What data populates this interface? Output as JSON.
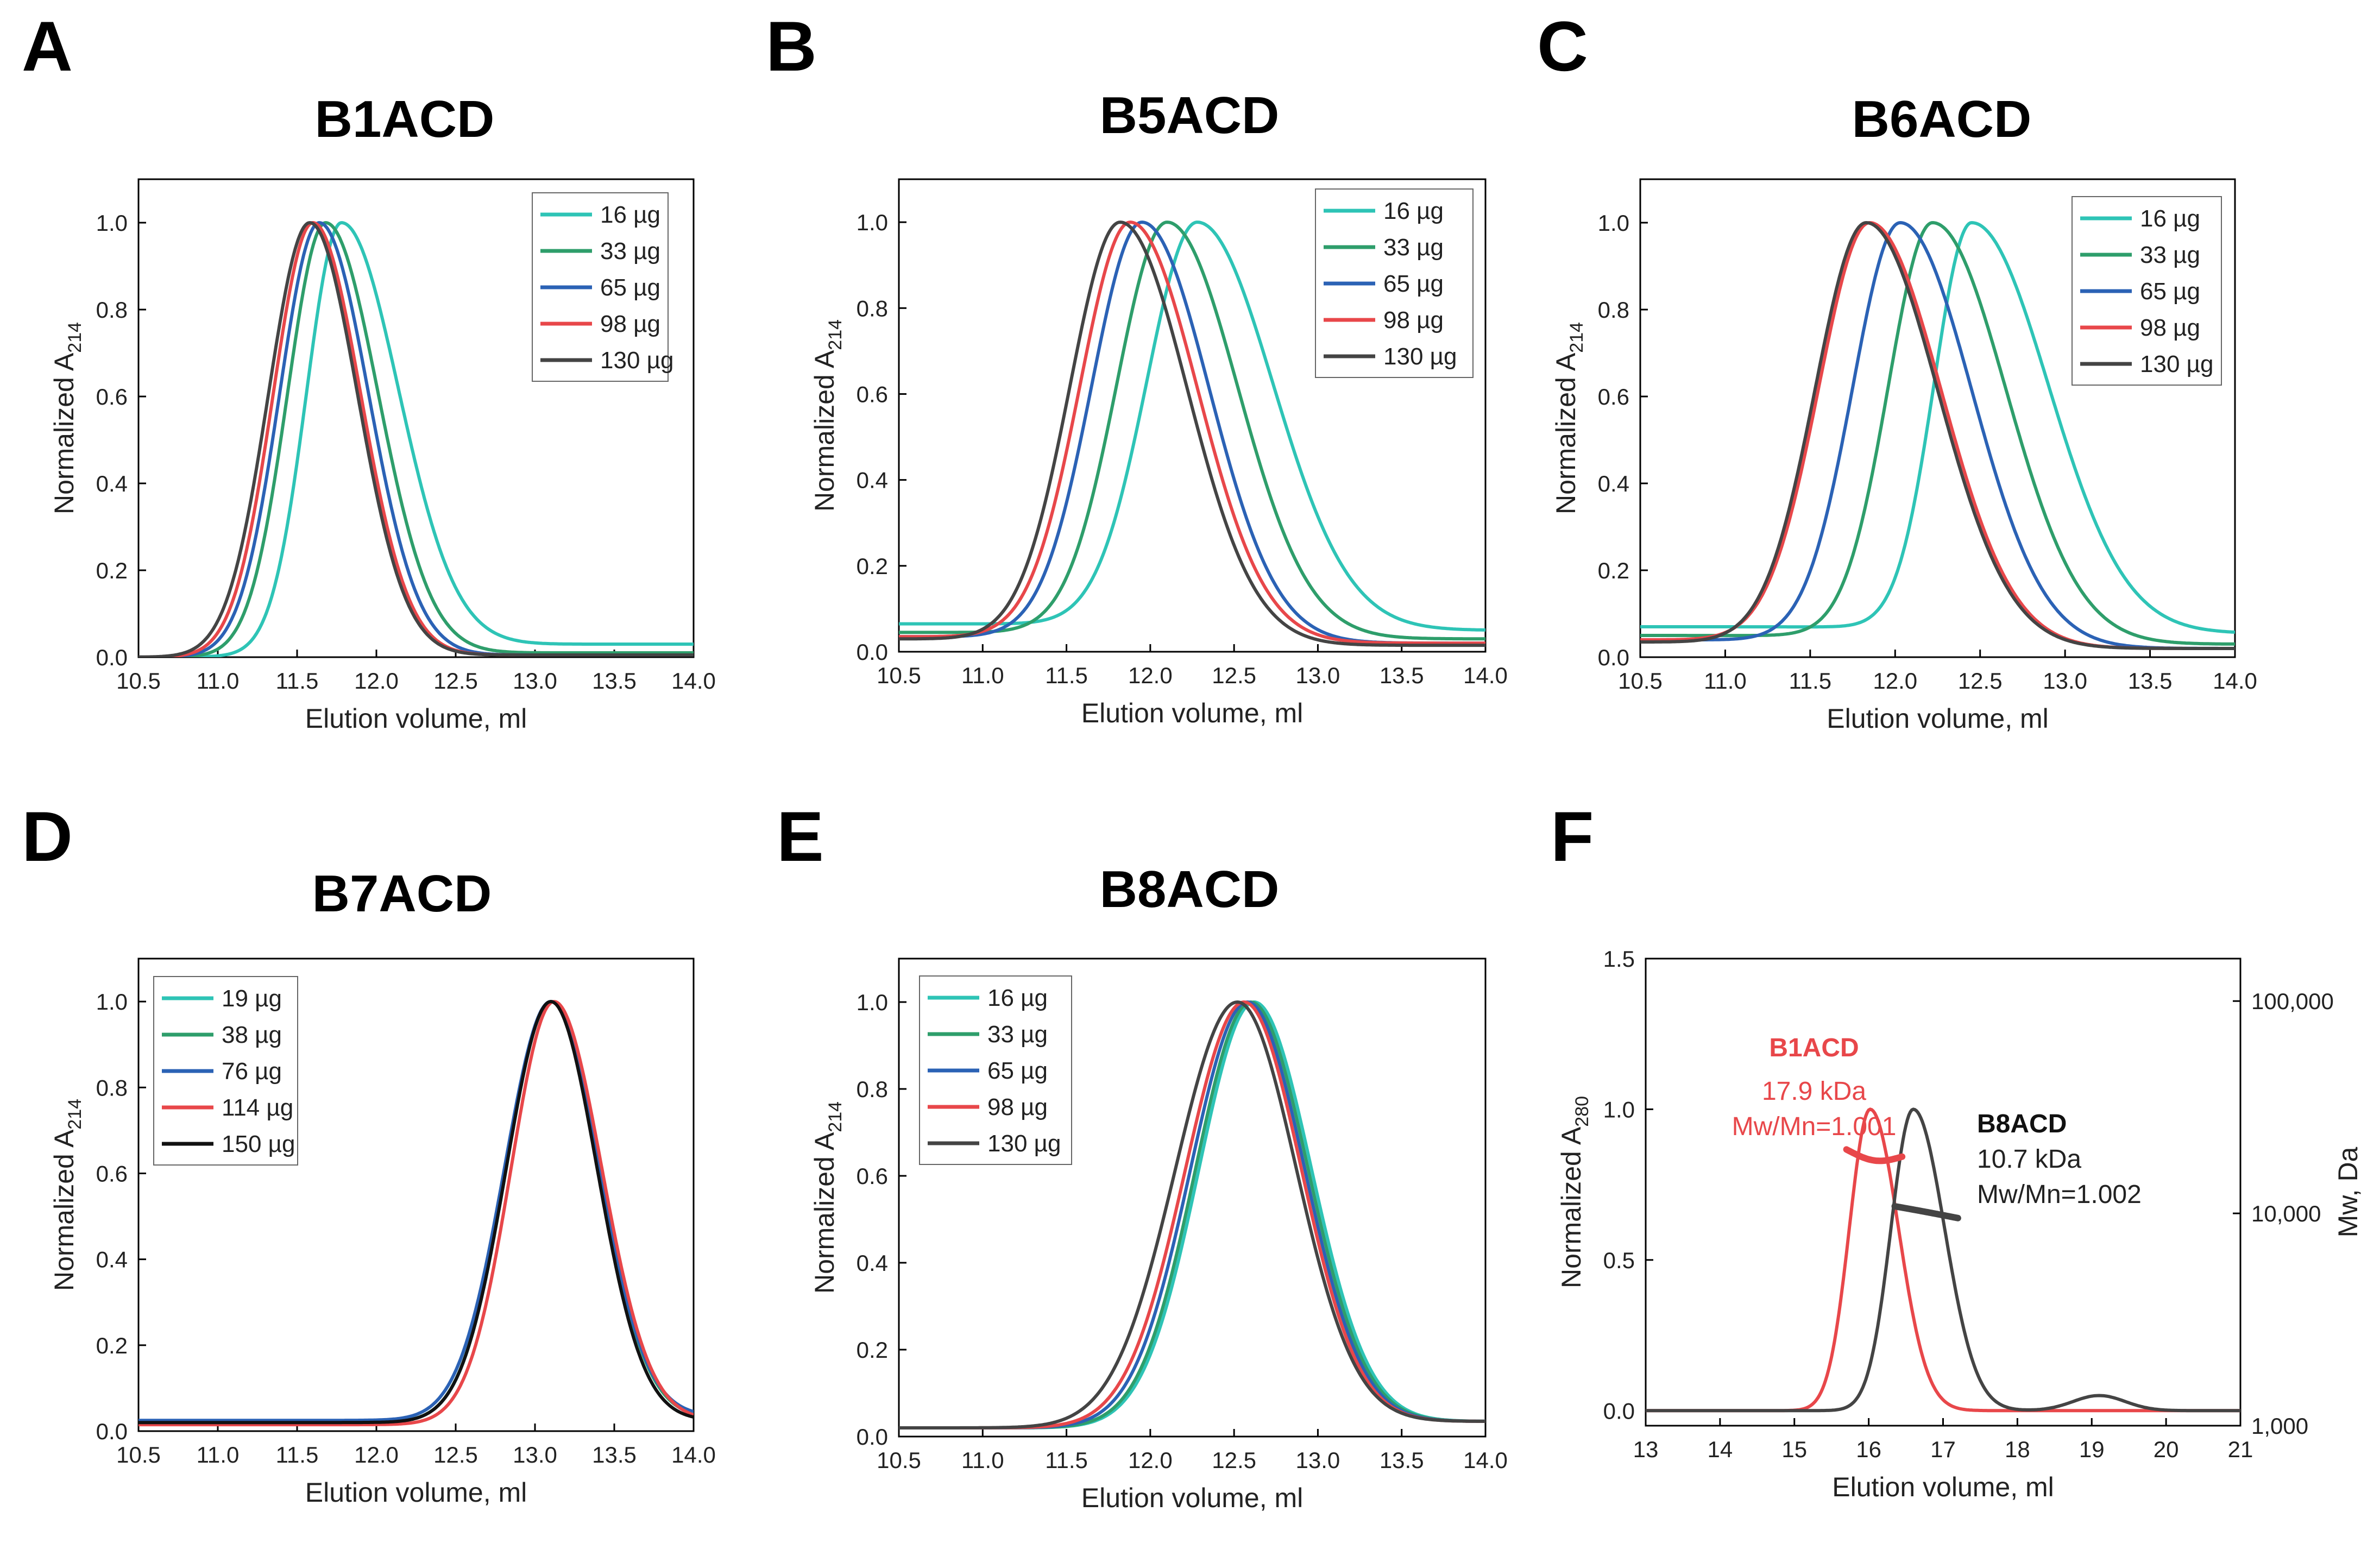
{
  "chart_data": [
    {
      "panel": "A",
      "title": "B1ACD",
      "type": "line",
      "xlabel": "Elution volume, ml",
      "ylabel": "Normalized A",
      "ylabel_sub": "214",
      "xlim": [
        10.5,
        14.0
      ],
      "ylim": [
        0.0,
        1.1
      ],
      "xticks": [
        "10.5",
        "11.0",
        "11.5",
        "12.0",
        "12.5",
        "13.0",
        "13.5",
        "14.0"
      ],
      "yticks": [
        "0.0",
        "0.2",
        "0.4",
        "0.6",
        "0.8",
        "1.0"
      ],
      "legend_position": "top-right",
      "series": [
        {
          "name": "16 µg",
          "color": "#2ec4b6",
          "peak": 11.78,
          "sl": 0.22,
          "sr": 0.36,
          "base_left": 0.0,
          "base_right": 0.03
        },
        {
          "name": "33 µg",
          "color": "#2e9e6b",
          "peak": 11.68,
          "sl": 0.24,
          "sr": 0.33,
          "base_left": 0.0,
          "base_right": 0.01
        },
        {
          "name": "65 µg",
          "color": "#2b62b5",
          "peak": 11.64,
          "sl": 0.25,
          "sr": 0.31,
          "base_left": 0.0,
          "base_right": 0.005
        },
        {
          "name": "98 µg",
          "color": "#e8474a",
          "peak": 11.6,
          "sl": 0.25,
          "sr": 0.3,
          "base_left": 0.0,
          "base_right": 0.005
        },
        {
          "name": "130 µg",
          "color": "#444444",
          "peak": 11.58,
          "sl": 0.26,
          "sr": 0.3,
          "base_left": 0.0,
          "base_right": 0.005
        }
      ]
    },
    {
      "panel": "B",
      "title": "B5ACD",
      "type": "line",
      "xlabel": "Elution volume, ml",
      "ylabel": "Normalized A",
      "ylabel_sub": "214",
      "xlim": [
        10.5,
        14.0
      ],
      "ylim": [
        0.0,
        1.1
      ],
      "xticks": [
        "10.5",
        "11.0",
        "11.5",
        "12.0",
        "12.5",
        "13.0",
        "13.5",
        "14.0"
      ],
      "yticks": [
        "0.0",
        "0.2",
        "0.4",
        "0.6",
        "0.8",
        "1.0"
      ],
      "legend_position": "top-right",
      "series": [
        {
          "name": "16 µg",
          "color": "#2ec4b6",
          "peak": 12.28,
          "sl": 0.3,
          "sr": 0.45,
          "base_left": 0.065,
          "base_right": 0.05
        },
        {
          "name": "33 µg",
          "color": "#2e9e6b",
          "peak": 12.1,
          "sl": 0.3,
          "sr": 0.42,
          "base_left": 0.045,
          "base_right": 0.03
        },
        {
          "name": "65 µg",
          "color": "#2b62b5",
          "peak": 11.95,
          "sl": 0.3,
          "sr": 0.4,
          "base_left": 0.035,
          "base_right": 0.02
        },
        {
          "name": "98 µg",
          "color": "#e8474a",
          "peak": 11.88,
          "sl": 0.3,
          "sr": 0.4,
          "base_left": 0.035,
          "base_right": 0.02
        },
        {
          "name": "130 µg",
          "color": "#444444",
          "peak": 11.82,
          "sl": 0.3,
          "sr": 0.4,
          "base_left": 0.03,
          "base_right": 0.015
        }
      ]
    },
    {
      "panel": "C",
      "title": "B6ACD",
      "type": "line",
      "xlabel": "Elution volume, ml",
      "ylabel": "Normalized A",
      "ylabel_sub": "214",
      "xlim": [
        10.5,
        14.0
      ],
      "ylim": [
        0.0,
        1.1
      ],
      "xticks": [
        "10.5",
        "11.0",
        "11.5",
        "12.0",
        "12.5",
        "13.0",
        "13.5",
        "14.0"
      ],
      "yticks": [
        "0.0",
        "0.2",
        "0.4",
        "0.6",
        "0.8",
        "1.0"
      ],
      "legend_position": "top-right",
      "series": [
        {
          "name": "16 µg",
          "color": "#2ec4b6",
          "peak": 12.45,
          "sl": 0.22,
          "sr": 0.45,
          "base_left": 0.07,
          "base_right": 0.055
        },
        {
          "name": "33 µg",
          "color": "#2e9e6b",
          "peak": 12.22,
          "sl": 0.26,
          "sr": 0.43,
          "base_left": 0.05,
          "base_right": 0.03
        },
        {
          "name": "65 µg",
          "color": "#2b62b5",
          "peak": 12.03,
          "sl": 0.28,
          "sr": 0.42,
          "base_left": 0.04,
          "base_right": 0.02
        },
        {
          "name": "98 µg",
          "color": "#e8474a",
          "peak": 11.85,
          "sl": 0.3,
          "sr": 0.42,
          "base_left": 0.04,
          "base_right": 0.02
        },
        {
          "name": "130 µg",
          "color": "#444444",
          "peak": 11.83,
          "sl": 0.3,
          "sr": 0.42,
          "base_left": 0.035,
          "base_right": 0.02
        }
      ]
    },
    {
      "panel": "D",
      "title": "B7ACD",
      "type": "line",
      "xlabel": "Elution volume, ml",
      "ylabel": "Normalized A",
      "ylabel_sub": "214",
      "xlim": [
        10.5,
        14.0
      ],
      "ylim": [
        0.0,
        1.1
      ],
      "xticks": [
        "10.5",
        "11.0",
        "11.5",
        "12.0",
        "12.5",
        "13.0",
        "13.5",
        "14.0"
      ],
      "yticks": [
        "0.0",
        "0.2",
        "0.4",
        "0.6",
        "0.8",
        "1.0"
      ],
      "legend_position": "top-left",
      "series": [
        {
          "name": "19 µg",
          "color": "#2ec4b6",
          "peak": 13.1,
          "sl": 0.28,
          "sr": 0.3,
          "base_left": 0.02,
          "base_right": 0.03
        },
        {
          "name": "38 µg",
          "color": "#2e9e6b",
          "peak": 13.1,
          "sl": 0.28,
          "sr": 0.3,
          "base_left": 0.02,
          "base_right": 0.03
        },
        {
          "name": "76 µg",
          "color": "#2b62b5",
          "peak": 13.1,
          "sl": 0.29,
          "sr": 0.3,
          "base_left": 0.025,
          "base_right": 0.035
        },
        {
          "name": "114 µg",
          "color": "#e8474a",
          "peak": 13.12,
          "sl": 0.27,
          "sr": 0.3,
          "base_left": 0.015,
          "base_right": 0.025
        },
        {
          "name": "150 µg",
          "color": "#111111",
          "peak": 13.1,
          "sl": 0.28,
          "sr": 0.29,
          "base_left": 0.02,
          "base_right": 0.025
        }
      ]
    },
    {
      "panel": "E",
      "title": "B8ACD",
      "type": "line",
      "xlabel": "Elution volume, ml",
      "ylabel": "Normalized A",
      "ylabel_sub": "214",
      "xlim": [
        10.5,
        14.0
      ],
      "ylim": [
        0.0,
        1.1
      ],
      "xticks": [
        "10.5",
        "11.0",
        "11.5",
        "12.0",
        "12.5",
        "13.0",
        "13.5",
        "14.0"
      ],
      "yticks": [
        "0.0",
        "0.2",
        "0.4",
        "0.6",
        "0.8",
        "1.0"
      ],
      "legend_position": "top-left",
      "series": [
        {
          "name": "16 µg",
          "color": "#2ec4b6",
          "peak": 12.62,
          "sl": 0.33,
          "sr": 0.34,
          "base_left": 0.02,
          "base_right": 0.035
        },
        {
          "name": "33 µg",
          "color": "#2e9e6b",
          "peak": 12.6,
          "sl": 0.33,
          "sr": 0.34,
          "base_left": 0.02,
          "base_right": 0.035
        },
        {
          "name": "65 µg",
          "color": "#2b62b5",
          "peak": 12.58,
          "sl": 0.34,
          "sr": 0.34,
          "base_left": 0.02,
          "base_right": 0.035
        },
        {
          "name": "98 µg",
          "color": "#e8474a",
          "peak": 12.56,
          "sl": 0.35,
          "sr": 0.34,
          "base_left": 0.02,
          "base_right": 0.035
        },
        {
          "name": "130 µg",
          "color": "#444444",
          "peak": 12.52,
          "sl": 0.37,
          "sr": 0.35,
          "base_left": 0.02,
          "base_right": 0.035
        }
      ]
    },
    {
      "panel": "F",
      "title": "",
      "type": "line",
      "xlabel": "Elution volume, ml",
      "ylabel": "Normalized A",
      "ylabel_sub": "280",
      "y2label": "Mw, Da",
      "xlim": [
        13,
        21
      ],
      "ylim": [
        -0.05,
        1.5
      ],
      "xticks": [
        "13",
        "14",
        "15",
        "16",
        "17",
        "18",
        "19",
        "20",
        "21"
      ],
      "yticks": [
        "0.0",
        "0.5",
        "1.0",
        "1.5"
      ],
      "y2lim_log10": [
        3,
        5.2
      ],
      "y2ticks": [
        {
          "value": 1000,
          "label": "1,000"
        },
        {
          "value": 10000,
          "label": "10,000"
        },
        {
          "value": 100000,
          "label": "100,000"
        }
      ],
      "series": [
        {
          "name": "B1ACD",
          "color": "#e8474a",
          "peak": 16.02,
          "sl": 0.28,
          "sr": 0.38,
          "base_left": 0.0,
          "base_right": 0.0,
          "mw_trace": {
            "x": [
              15.7,
              16.45
            ],
            "mw_start": 20000,
            "mw_end": 18500,
            "dip": 1500
          }
        },
        {
          "name": "B8ACD",
          "color": "#444444",
          "peak": 16.6,
          "sl": 0.3,
          "sr": 0.42,
          "base_left": 0.0,
          "base_right": 0.0,
          "bump": {
            "x": 19.1,
            "h": 0.05,
            "w": 0.35
          },
          "mw_trace": {
            "x": [
              16.35,
              17.2
            ],
            "mw_start": 10800,
            "mw_end": 9500,
            "dip": 0
          }
        }
      ],
      "annotations": [
        {
          "label": "B1ACD",
          "color": "#e8474a",
          "bold": true
        },
        {
          "label": "17.9 kDa",
          "color": "#e8474a",
          "bold": false
        },
        {
          "label": "Mw/Mn=1.001",
          "color": "#e8474a",
          "bold": false
        },
        {
          "label": "B8ACD",
          "color": "#111111",
          "bold": true
        },
        {
          "label": "10.7 kDa",
          "color": "#222222",
          "bold": false
        },
        {
          "label": "Mw/Mn=1.002",
          "color": "#222222",
          "bold": false
        }
      ]
    }
  ]
}
